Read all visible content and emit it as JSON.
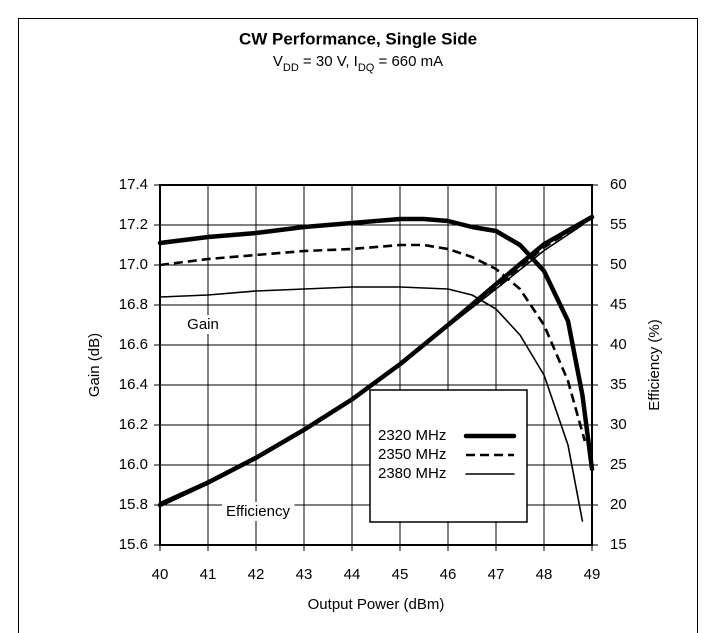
{
  "chart_data": {
    "type": "line",
    "title": "CW Performance, Single Side",
    "subtitle_parts": [
      {
        "text": "V",
        "sub": false
      },
      {
        "text": "DD",
        "sub": true
      },
      {
        "text": " = 30 V, I",
        "sub": false
      },
      {
        "text": "DQ",
        "sub": true
      },
      {
        "text": " = 660 mA",
        "sub": false
      }
    ],
    "x_label": "Output Power (dBm)",
    "y_label": "Gain (dB)",
    "y2_label": "Efficiency (%)",
    "annotations": [
      "Gain",
      "Efficiency"
    ],
    "xlim": [
      40,
      49
    ],
    "xticks": [
      40,
      41,
      42,
      43,
      44,
      45,
      46,
      47,
      48,
      49
    ],
    "ylim": [
      15.6,
      17.4
    ],
    "yticks": [
      15.6,
      15.8,
      {
        "value": 16.0,
        "label": "16.0"
      },
      16.2,
      16.4,
      16.6,
      16.8,
      {
        "value": 17.0,
        "label": "17.0"
      },
      17.2,
      17.4
    ],
    "y2lim": [
      15,
      60
    ],
    "y2ticks": [
      15,
      20,
      25,
      30,
      35,
      40,
      45,
      50,
      55,
      60
    ],
    "grid": true,
    "series": [
      {
        "name": "2320 MHz",
        "color": "#000000",
        "line_style": "thick",
        "gain": {
          "x": [
            40,
            41,
            42,
            43,
            44,
            45,
            45.5,
            46,
            46.5,
            47,
            47.5,
            48,
            48.5,
            48.8,
            49
          ],
          "values": [
            17.11,
            17.14,
            17.16,
            17.19,
            17.21,
            17.23,
            17.23,
            17.22,
            17.19,
            17.17,
            17.1,
            16.97,
            16.72,
            16.35,
            15.98
          ]
        },
        "efficiency": {
          "axis": "y2",
          "x": [
            40,
            41,
            42,
            43,
            44,
            45,
            46,
            47,
            48,
            49
          ],
          "values": [
            20,
            22.8,
            25.9,
            29.4,
            33.2,
            37.6,
            42.5,
            47.6,
            52.6,
            56
          ]
        }
      },
      {
        "name": "2350 MHz",
        "color": "#000000",
        "line_style": "dashed",
        "gain": {
          "x": [
            40,
            41,
            42,
            43,
            44,
            45,
            45.5,
            46,
            46.5,
            47,
            47.5,
            48,
            48.5,
            48.85
          ],
          "values": [
            17.0,
            17.03,
            17.05,
            17.07,
            17.08,
            17.1,
            17.1,
            17.08,
            17.04,
            16.98,
            16.88,
            16.7,
            16.42,
            16.12
          ]
        },
        "efficiency": {
          "axis": "y2",
          "x": [
            40,
            41,
            42,
            43,
            44,
            45,
            46,
            47,
            48,
            48.8
          ],
          "values": [
            20.2,
            22.9,
            26,
            29.5,
            33.3,
            37.7,
            42.5,
            47.3,
            52.2,
            55.3
          ]
        }
      },
      {
        "name": "2380 MHz",
        "color": "#000000",
        "line_style": "thin",
        "gain": {
          "x": [
            40,
            41,
            42,
            43,
            44,
            45,
            46,
            46.5,
            47,
            47.5,
            48,
            48.5,
            48.8
          ],
          "values": [
            16.84,
            16.85,
            16.87,
            16.88,
            16.89,
            16.89,
            16.88,
            16.85,
            16.78,
            16.65,
            16.45,
            16.1,
            15.72
          ]
        },
        "efficiency": {
          "axis": "y2",
          "x": [
            40,
            41,
            42,
            43,
            44,
            45,
            46,
            47,
            48,
            48.8
          ],
          "values": [
            20.3,
            23,
            26.1,
            29.5,
            33.3,
            37.6,
            42.3,
            47,
            51.8,
            55
          ]
        }
      }
    ]
  }
}
